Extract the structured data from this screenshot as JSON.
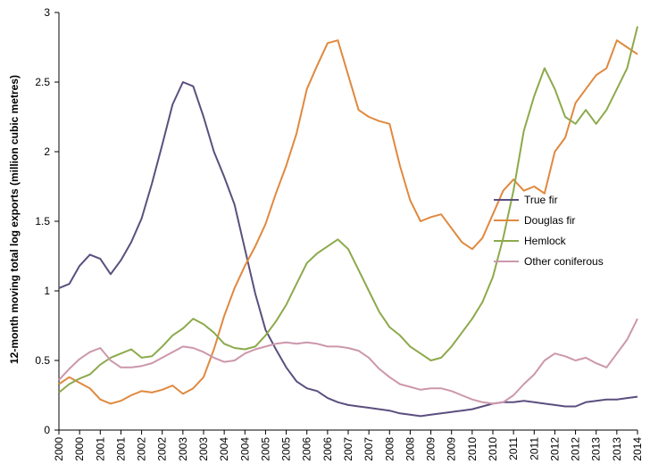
{
  "chart_data": {
    "type": "line",
    "ylabel": "12-month moving total log exports (million cubic metres)",
    "xlabel": "",
    "ylim": [
      0,
      3
    ],
    "y_ticks": [
      "0",
      "0.5",
      "1",
      "1.5",
      "2",
      "2.5",
      "3"
    ],
    "x_ticks": [
      "2000",
      "2000",
      "2001",
      "2001",
      "2002",
      "2002",
      "2003",
      "2003",
      "2004",
      "2004",
      "2005",
      "2005",
      "2006",
      "2006",
      "2007",
      "2007",
      "2008",
      "2008",
      "2009",
      "2009",
      "2010",
      "2010",
      "2011",
      "2011",
      "2012",
      "2012",
      "2013",
      "2013",
      "2014"
    ],
    "x_range": [
      2000.0,
      2014.0
    ],
    "grid": false,
    "legend_position": "right",
    "series": [
      {
        "name": "True fir",
        "color": "#5b4f7f",
        "x": [
          2000.0,
          2000.25,
          2000.5,
          2000.75,
          2001.0,
          2001.25,
          2001.5,
          2001.75,
          2002.0,
          2002.25,
          2002.5,
          2002.75,
          2003.0,
          2003.25,
          2003.5,
          2003.75,
          2004.0,
          2004.25,
          2004.5,
          2004.75,
          2005.0,
          2005.25,
          2005.5,
          2005.75,
          2006.0,
          2006.25,
          2006.5,
          2006.75,
          2007.0,
          2007.25,
          2007.5,
          2007.75,
          2008.0,
          2008.25,
          2008.5,
          2008.75,
          2009.0,
          2009.25,
          2009.5,
          2009.75,
          2010.0,
          2010.25,
          2010.5,
          2010.75,
          2011.0,
          2011.25,
          2011.5,
          2011.75,
          2012.0,
          2012.25,
          2012.5,
          2012.75,
          2013.0,
          2013.25,
          2013.5,
          2013.75,
          2014.0
        ],
        "values": [
          1.02,
          1.05,
          1.18,
          1.26,
          1.23,
          1.12,
          1.22,
          1.35,
          1.52,
          1.77,
          2.05,
          2.34,
          2.5,
          2.47,
          2.25,
          2.0,
          1.82,
          1.62,
          1.3,
          0.98,
          0.72,
          0.58,
          0.45,
          0.35,
          0.3,
          0.28,
          0.23,
          0.2,
          0.18,
          0.17,
          0.16,
          0.15,
          0.14,
          0.12,
          0.11,
          0.1,
          0.11,
          0.12,
          0.13,
          0.14,
          0.15,
          0.17,
          0.19,
          0.2,
          0.2,
          0.21,
          0.2,
          0.19,
          0.18,
          0.17,
          0.17,
          0.2,
          0.21,
          0.22,
          0.22,
          0.23,
          0.24
        ]
      },
      {
        "name": "Douglas fir",
        "color": "#e0893f",
        "x": [
          2000.0,
          2000.25,
          2000.5,
          2000.75,
          2001.0,
          2001.25,
          2001.5,
          2001.75,
          2002.0,
          2002.25,
          2002.5,
          2002.75,
          2003.0,
          2003.25,
          2003.5,
          2003.75,
          2004.0,
          2004.25,
          2004.5,
          2004.75,
          2005.0,
          2005.25,
          2005.5,
          2005.75,
          2006.0,
          2006.25,
          2006.5,
          2006.75,
          2007.0,
          2007.25,
          2007.5,
          2007.75,
          2008.0,
          2008.25,
          2008.5,
          2008.75,
          2009.0,
          2009.25,
          2009.5,
          2009.75,
          2010.0,
          2010.25,
          2010.5,
          2010.75,
          2011.0,
          2011.25,
          2011.5,
          2011.75,
          2012.0,
          2012.25,
          2012.5,
          2012.75,
          2013.0,
          2013.25,
          2013.5,
          2013.75,
          2014.0
        ],
        "values": [
          0.33,
          0.38,
          0.34,
          0.3,
          0.22,
          0.19,
          0.21,
          0.25,
          0.28,
          0.27,
          0.29,
          0.32,
          0.26,
          0.3,
          0.38,
          0.58,
          0.82,
          1.02,
          1.18,
          1.32,
          1.48,
          1.7,
          1.9,
          2.13,
          2.45,
          2.62,
          2.78,
          2.8,
          2.55,
          2.3,
          2.25,
          2.22,
          2.2,
          1.9,
          1.65,
          1.5,
          1.53,
          1.55,
          1.45,
          1.35,
          1.3,
          1.38,
          1.55,
          1.72,
          1.8,
          1.72,
          1.75,
          1.7,
          2.0,
          2.1,
          2.35,
          2.45,
          2.55,
          2.6,
          2.8,
          2.75,
          2.7
        ]
      },
      {
        "name": "Hemlock",
        "color": "#8caa4b",
        "x": [
          2000.0,
          2000.25,
          2000.5,
          2000.75,
          2001.0,
          2001.25,
          2001.5,
          2001.75,
          2002.0,
          2002.25,
          2002.5,
          2002.75,
          2003.0,
          2003.25,
          2003.5,
          2003.75,
          2004.0,
          2004.25,
          2004.5,
          2004.75,
          2005.0,
          2005.25,
          2005.5,
          2005.75,
          2006.0,
          2006.25,
          2006.5,
          2006.75,
          2007.0,
          2007.25,
          2007.5,
          2007.75,
          2008.0,
          2008.25,
          2008.5,
          2008.75,
          2009.0,
          2009.25,
          2009.5,
          2009.75,
          2010.0,
          2010.25,
          2010.5,
          2010.75,
          2011.0,
          2011.25,
          2011.5,
          2011.75,
          2012.0,
          2012.25,
          2012.5,
          2012.75,
          2013.0,
          2013.25,
          2013.5,
          2013.75,
          2014.0
        ],
        "values": [
          0.27,
          0.33,
          0.37,
          0.4,
          0.47,
          0.52,
          0.55,
          0.58,
          0.52,
          0.53,
          0.6,
          0.68,
          0.73,
          0.8,
          0.76,
          0.7,
          0.62,
          0.59,
          0.58,
          0.6,
          0.68,
          0.78,
          0.9,
          1.05,
          1.2,
          1.27,
          1.32,
          1.37,
          1.3,
          1.15,
          1.0,
          0.85,
          0.74,
          0.68,
          0.6,
          0.55,
          0.5,
          0.52,
          0.6,
          0.7,
          0.8,
          0.92,
          1.1,
          1.38,
          1.72,
          2.15,
          2.4,
          2.6,
          2.45,
          2.25,
          2.2,
          2.3,
          2.2,
          2.3,
          2.45,
          2.6,
          2.9
        ]
      },
      {
        "name": "Other coniferous",
        "color": "#cc97ac",
        "x": [
          2000.0,
          2000.25,
          2000.5,
          2000.75,
          2001.0,
          2001.25,
          2001.5,
          2001.75,
          2002.0,
          2002.25,
          2002.5,
          2002.75,
          2003.0,
          2003.25,
          2003.5,
          2003.75,
          2004.0,
          2004.25,
          2004.5,
          2004.75,
          2005.0,
          2005.25,
          2005.5,
          2005.75,
          2006.0,
          2006.25,
          2006.5,
          2006.75,
          2007.0,
          2007.25,
          2007.5,
          2007.75,
          2008.0,
          2008.25,
          2008.5,
          2008.75,
          2009.0,
          2009.25,
          2009.5,
          2009.75,
          2010.0,
          2010.25,
          2010.5,
          2010.75,
          2011.0,
          2011.25,
          2011.5,
          2011.75,
          2012.0,
          2012.25,
          2012.5,
          2012.75,
          2013.0,
          2013.25,
          2013.5,
          2013.75,
          2014.0
        ],
        "values": [
          0.36,
          0.44,
          0.51,
          0.56,
          0.59,
          0.5,
          0.45,
          0.45,
          0.46,
          0.48,
          0.52,
          0.56,
          0.6,
          0.59,
          0.56,
          0.52,
          0.49,
          0.5,
          0.55,
          0.58,
          0.6,
          0.62,
          0.63,
          0.62,
          0.63,
          0.62,
          0.6,
          0.6,
          0.59,
          0.57,
          0.52,
          0.44,
          0.38,
          0.33,
          0.31,
          0.29,
          0.3,
          0.3,
          0.28,
          0.25,
          0.22,
          0.2,
          0.19,
          0.2,
          0.25,
          0.33,
          0.4,
          0.5,
          0.55,
          0.53,
          0.5,
          0.52,
          0.48,
          0.45,
          0.55,
          0.65,
          0.8
        ]
      }
    ]
  }
}
